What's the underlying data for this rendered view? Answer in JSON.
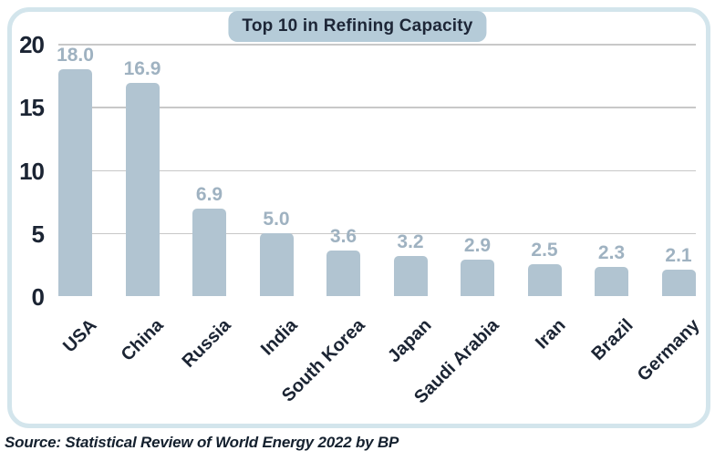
{
  "title": "Top 10 in Refining Capacity",
  "source": "Source: Statistical Review of World Energy 2022 by BP",
  "chart_data": {
    "type": "bar",
    "title": "Top 10 in Refining Capacity",
    "categories": [
      "USA",
      "China",
      "Russia",
      "India",
      "South Korea",
      "Japan",
      "Saudi Arabia",
      "Iran",
      "Brazil",
      "Germany"
    ],
    "values": [
      18.0,
      16.9,
      6.9,
      5.0,
      3.6,
      3.2,
      2.9,
      2.5,
      2.3,
      2.1
    ],
    "value_labels": [
      "18.0",
      "16.9",
      "6.9",
      "5.0",
      "3.6",
      "3.2",
      "2.9",
      "2.5",
      "2.3",
      "2.1"
    ],
    "xlabel": "",
    "ylabel": "",
    "ylim": [
      0,
      20
    ],
    "yticks": [
      0,
      5,
      10,
      15,
      20
    ],
    "grid": true,
    "legend": false,
    "annotation": "Source: Statistical Review of World Energy 2022 by BP"
  },
  "colors": {
    "bar": "#b1c4d1",
    "value-label": "#9fb2c1",
    "axis-text": "#1b2433",
    "gridline": "#c8c8c8",
    "border": "#d3e5ec",
    "title-bg": "#b5cbd8",
    "title-text": "#1d2637",
    "source-text": "#14202e"
  }
}
